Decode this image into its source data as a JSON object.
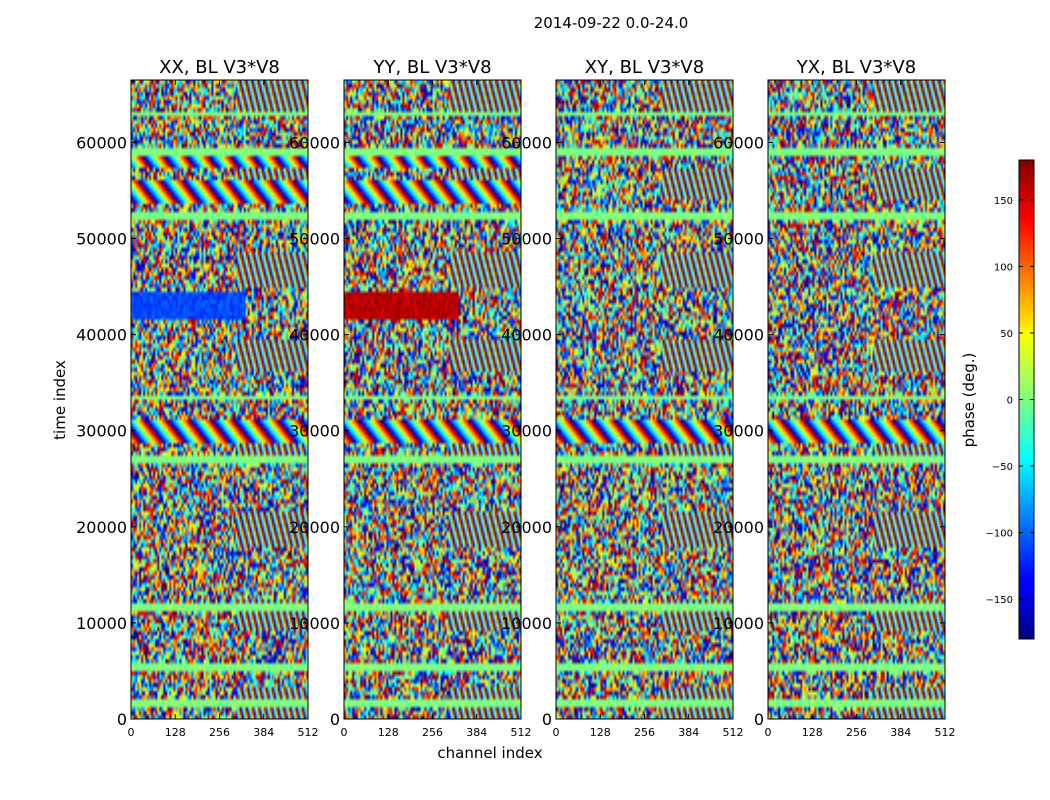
{
  "figure": {
    "suptitle": "2014-09-22 0.0-24.0"
  },
  "chart_data": {
    "type": "heatmap",
    "title": "2014-09-22 0.0-24.0",
    "xlabel": "channel index",
    "ylabel": "time index",
    "xlim": [
      0,
      512
    ],
    "ylim": [
      0,
      66500
    ],
    "x_ticks": [
      0,
      128,
      256,
      384,
      512
    ],
    "y_ticks": [
      0,
      10000,
      20000,
      30000,
      40000,
      50000,
      60000
    ],
    "panels": [
      {
        "title": "XX, BL V3*V8",
        "pol": "XX"
      },
      {
        "title": "YY, BL V3*V8",
        "pol": "YY"
      },
      {
        "title": "XY, BL V3*V8",
        "pol": "XY"
      },
      {
        "title": "YX, BL V3*V8",
        "pol": "YX"
      }
    ],
    "colorbar": {
      "label": "phase (deg.)",
      "range": [
        -180,
        180
      ],
      "ticks": [
        -150,
        -100,
        -50,
        0,
        50,
        100,
        150
      ],
      "tick_labels": [
        "−150",
        "−100",
        "−50",
        "0",
        "50",
        "100",
        "150"
      ],
      "colormap": "jet"
    },
    "approx_features": {
      "fringe_bands_time_index": [
        [
          53500,
          56000
        ],
        [
          57500,
          58500
        ],
        [
          29000,
          30500
        ]
      ],
      "flat_phase_band_time_index": [
        [
          41500,
          44500
        ]
      ],
      "flat_phase_band_value_deg": {
        "XX": -110,
        "YY": 160
      },
      "uniform_flag_rows_time_index": [
        1800,
        5400,
        11500,
        27000,
        33500,
        52500,
        59000,
        63000
      ]
    }
  }
}
